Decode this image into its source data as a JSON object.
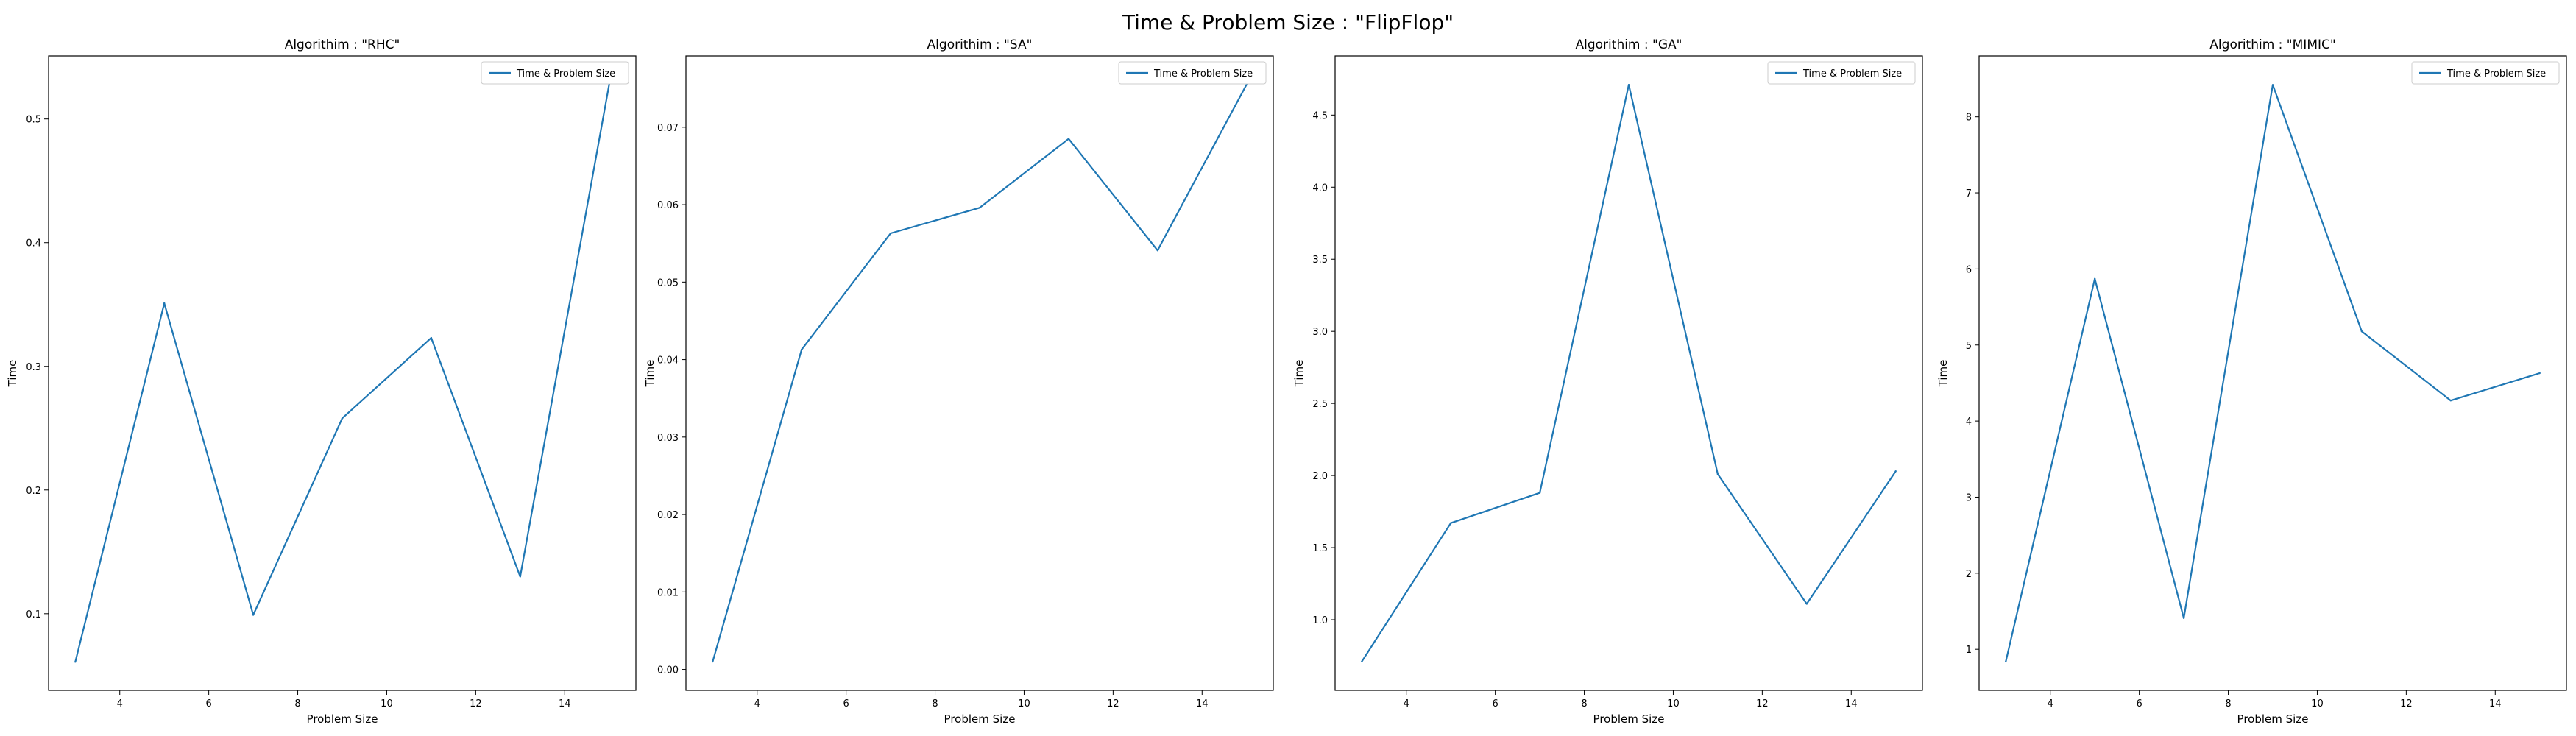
{
  "figure": {
    "title": "Time & Problem Size : \"FlipFlop\""
  },
  "colors": {
    "series": "#1f77b4",
    "axes": "#000000",
    "legend_border": "#cccccc"
  },
  "chart_data": [
    {
      "type": "line",
      "title": "Algorithim : \"RHC\"",
      "xlabel": "Problem Size",
      "ylabel": "Time",
      "x": [
        3,
        5,
        7,
        9,
        11,
        13,
        15
      ],
      "series": [
        {
          "name": "Time & Problem Size",
          "values": [
            0.061,
            0.351,
            0.099,
            0.258,
            0.323,
            0.13,
            0.528
          ]
        }
      ],
      "xlim": [
        2.4,
        15.6
      ],
      "ylim": [
        0.038,
        0.551
      ],
      "xticks": [
        4,
        6,
        8,
        10,
        12,
        14
      ],
      "yticks": [
        0.1,
        0.2,
        0.3,
        0.4,
        0.5
      ],
      "ytick_labels": [
        "0.1",
        "0.2",
        "0.3",
        "0.4",
        "0.5"
      ],
      "grid": false,
      "legend": "top-right"
    },
    {
      "type": "line",
      "title": "Algorithim : \"SA\"",
      "xlabel": "Problem Size",
      "ylabel": "Time",
      "x": [
        3,
        5,
        7,
        9,
        11,
        13,
        15
      ],
      "series": [
        {
          "name": "Time & Problem Size",
          "values": [
            0.001,
            0.0413,
            0.0563,
            0.0596,
            0.0685,
            0.0541,
            0.0755
          ]
        }
      ],
      "xlim": [
        2.4,
        15.6
      ],
      "ylim": [
        -0.0027,
        0.0792
      ],
      "xticks": [
        4,
        6,
        8,
        10,
        12,
        14
      ],
      "yticks": [
        0.0,
        0.01,
        0.02,
        0.03,
        0.04,
        0.05,
        0.06,
        0.07
      ],
      "ytick_labels": [
        "0.00",
        "0.01",
        "0.02",
        "0.03",
        "0.04",
        "0.05",
        "0.06",
        "0.07"
      ],
      "grid": false,
      "legend": "top-right"
    },
    {
      "type": "line",
      "title": "Algorithim : \"GA\"",
      "xlabel": "Problem Size",
      "ylabel": "Time",
      "x": [
        3,
        5,
        7,
        9,
        11,
        13,
        15
      ],
      "series": [
        {
          "name": "Time & Problem Size",
          "values": [
            0.71,
            1.67,
            1.88,
            4.71,
            2.01,
            1.11,
            2.03
          ]
        }
      ],
      "xlim": [
        2.4,
        15.6
      ],
      "ylim": [
        0.51,
        4.91
      ],
      "xticks": [
        4,
        6,
        8,
        10,
        12,
        14
      ],
      "yticks": [
        1.0,
        1.5,
        2.0,
        2.5,
        3.0,
        3.5,
        4.0,
        4.5
      ],
      "ytick_labels": [
        "1.0",
        "1.5",
        "2.0",
        "2.5",
        "3.0",
        "3.5",
        "4.0",
        "4.5"
      ],
      "grid": false,
      "legend": "top-right"
    },
    {
      "type": "line",
      "title": "Algorithim : \"MIMIC\"",
      "xlabel": "Problem Size",
      "ylabel": "Time",
      "x": [
        3,
        5,
        7,
        9,
        11,
        13,
        15
      ],
      "series": [
        {
          "name": "Time & Problem Size",
          "values": [
            0.84,
            5.87,
            1.41,
            8.42,
            5.18,
            4.27,
            4.63
          ]
        }
      ],
      "xlim": [
        2.4,
        15.6
      ],
      "ylim": [
        0.46,
        8.8
      ],
      "xticks": [
        4,
        6,
        8,
        10,
        12,
        14
      ],
      "yticks": [
        1,
        2,
        3,
        4,
        5,
        6,
        7,
        8
      ],
      "ytick_labels": [
        "1",
        "2",
        "3",
        "4",
        "5",
        "6",
        "7",
        "8"
      ],
      "grid": false,
      "legend": "top-right"
    }
  ]
}
